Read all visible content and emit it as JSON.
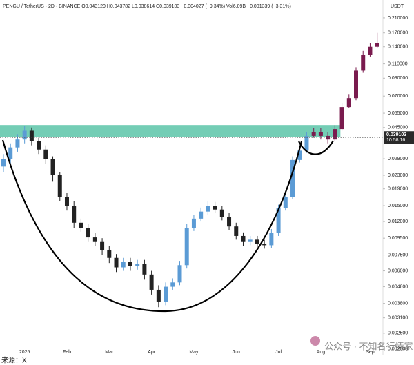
{
  "chart_data": {
    "type": "candlestick",
    "header": "PENGU / TetherUS · 2D · BINANCE  O0.043120 H0.043782 L0.038614 C0.039103 −0.004027 (−9.34%)  Vol6.09B  −0.001339 (−3.31%)",
    "currency": "USDT",
    "log_scale": true,
    "ylim": [
      0.00183,
      0.27
    ],
    "yticks": [
      {
        "value": 0.21,
        "label": "0.210000"
      },
      {
        "value": 0.17,
        "label": "0.170000"
      },
      {
        "value": 0.14,
        "label": "0.140000"
      },
      {
        "value": 0.11,
        "label": "0.110000"
      },
      {
        "value": 0.09,
        "label": "0.090000"
      },
      {
        "value": 0.07,
        "label": "0.070000"
      },
      {
        "value": 0.055,
        "label": "0.055000"
      },
      {
        "value": 0.045,
        "label": "0.045000"
      },
      {
        "value": 0.029,
        "label": "0.029000"
      },
      {
        "value": 0.023,
        "label": "0.023000"
      },
      {
        "value": 0.019,
        "label": "0.019000"
      },
      {
        "value": 0.015,
        "label": "0.015000"
      },
      {
        "value": 0.012,
        "label": "0.012000"
      },
      {
        "value": 0.0095,
        "label": "0.009500"
      },
      {
        "value": 0.0075,
        "label": "0.007500"
      },
      {
        "value": 0.006,
        "label": "0.006000"
      },
      {
        "value": 0.0048,
        "label": "0.004800"
      },
      {
        "value": 0.0038,
        "label": "0.003800"
      },
      {
        "value": 0.0031,
        "label": "0.003100"
      },
      {
        "value": 0.0025,
        "label": "0.002500"
      },
      {
        "value": 0.002,
        "label": "0.002000"
      }
    ],
    "categories": [
      null,
      null,
      null,
      "2025",
      null,
      null,
      null,
      null,
      null,
      "Feb",
      null,
      null,
      null,
      null,
      null,
      "Mar",
      null,
      null,
      null,
      null,
      null,
      "Apr",
      null,
      null,
      null,
      null,
      null,
      "May",
      null,
      null,
      null,
      null,
      null,
      "Jun",
      null,
      null,
      null,
      null,
      null,
      "Jul",
      null,
      null,
      null,
      null,
      null,
      "Aug",
      null,
      null,
      null,
      null,
      null,
      null,
      "Sep",
      null
    ],
    "open": [
      0.026,
      0.029,
      0.034,
      0.038,
      0.043,
      0.037,
      0.033,
      0.029,
      0.023,
      0.017,
      0.015,
      0.0118,
      0.011,
      0.0096,
      0.009,
      0.008,
      0.0072,
      0.0063,
      0.0068,
      0.0064,
      0.0066,
      0.0057,
      0.0046,
      0.0039,
      0.0048,
      0.0051,
      0.0065,
      0.011,
      0.0125,
      0.0138,
      0.015,
      0.0142,
      0.0128,
      0.0112,
      0.0098,
      0.009,
      0.0093,
      0.0088,
      0.0086,
      0.0102,
      0.0145,
      0.017,
      0.0285,
      0.0325,
      0.04,
      0.042,
      0.04,
      0.038,
      0.044,
      0.06,
      0.068,
      0.1,
      0.125,
      0.14
    ],
    "high": [
      0.031,
      0.036,
      0.041,
      0.046,
      0.045,
      0.039,
      0.035,
      0.03,
      0.024,
      0.018,
      0.016,
      0.0125,
      0.0116,
      0.0102,
      0.0095,
      0.0085,
      0.0076,
      0.0072,
      0.0072,
      0.007,
      0.007,
      0.006,
      0.0049,
      0.0051,
      0.0054,
      0.0069,
      0.0116,
      0.0132,
      0.0146,
      0.016,
      0.0158,
      0.015,
      0.0135,
      0.0118,
      0.0103,
      0.0098,
      0.0098,
      0.0093,
      0.0108,
      0.0152,
      0.018,
      0.03,
      0.034,
      0.042,
      0.0445,
      0.0445,
      0.042,
      0.0465,
      0.063,
      0.072,
      0.105,
      0.132,
      0.148,
      0.17
    ],
    "low": [
      0.024,
      0.027,
      0.032,
      0.036,
      0.035,
      0.031,
      0.027,
      0.021,
      0.016,
      0.014,
      0.011,
      0.0104,
      0.009,
      0.0085,
      0.0075,
      0.0067,
      0.0059,
      0.006,
      0.006,
      0.0061,
      0.0053,
      0.0043,
      0.0036,
      0.0037,
      0.0046,
      0.0049,
      0.0062,
      0.0105,
      0.012,
      0.0132,
      0.0136,
      0.0122,
      0.0106,
      0.0093,
      0.0085,
      0.0086,
      0.0084,
      0.0082,
      0.0083,
      0.0098,
      0.014,
      0.0165,
      0.0275,
      0.0315,
      0.039,
      0.038,
      0.036,
      0.037,
      0.043,
      0.059,
      0.066,
      0.097,
      0.122,
      0.138
    ],
    "close": [
      0.029,
      0.034,
      0.038,
      0.043,
      0.037,
      0.033,
      0.029,
      0.023,
      0.017,
      0.015,
      0.0118,
      0.011,
      0.0096,
      0.009,
      0.008,
      0.0072,
      0.0063,
      0.0068,
      0.0064,
      0.0066,
      0.0057,
      0.0046,
      0.0039,
      0.0048,
      0.0051,
      0.0065,
      0.011,
      0.0125,
      0.0138,
      0.015,
      0.0142,
      0.0128,
      0.0112,
      0.0098,
      0.009,
      0.0093,
      0.0088,
      0.0086,
      0.0102,
      0.0145,
      0.017,
      0.0285,
      0.0325,
      0.04,
      0.042,
      0.04,
      0.038,
      0.044,
      0.06,
      0.068,
      0.1,
      0.125,
      0.14,
      0.148
    ],
    "candle_colors": [
      "#5b9bd5",
      "#5b9bd5",
      "#5b9bd5",
      "#5b9bd5",
      "#222222",
      "#222222",
      "#222222",
      "#222222",
      "#222222",
      "#222222",
      "#222222",
      "#222222",
      "#222222",
      "#222222",
      "#222222",
      "#222222",
      "#222222",
      "#5b9bd5",
      "#222222",
      "#5b9bd5",
      "#222222",
      "#222222",
      "#222222",
      "#5b9bd5",
      "#5b9bd5",
      "#5b9bd5",
      "#5b9bd5",
      "#5b9bd5",
      "#5b9bd5",
      "#5b9bd5",
      "#222222",
      "#222222",
      "#222222",
      "#222222",
      "#222222",
      "#5b9bd5",
      "#222222",
      "#222222",
      "#5b9bd5",
      "#5b9bd5",
      "#5b9bd5",
      "#5b9bd5",
      "#5b9bd5",
      "#5b9bd5",
      "#7a1b4e",
      "#7a1b4e",
      "#7a1b4e",
      "#7a1b4e",
      "#7a1b4e",
      "#7a1b4e",
      "#7a1b4e",
      "#7a1b4e",
      "#7a1b4e",
      "#7a1b4e"
    ],
    "zone": {
      "low": 0.0395,
      "high": 0.0466,
      "color": "#5cc4a8"
    },
    "last_price": 0.039103,
    "last_time": "10:58:16",
    "watermark": "公众号 · 不知名行情家",
    "source": "来源：X"
  }
}
